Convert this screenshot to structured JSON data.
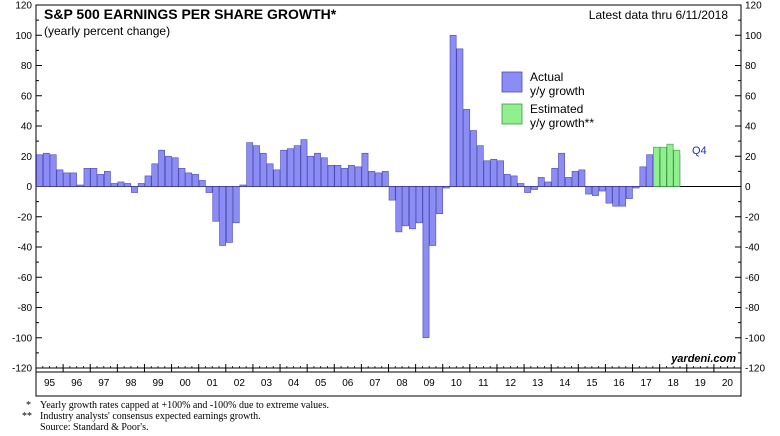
{
  "chart_data": {
    "type": "bar",
    "title": "S&P 500 EARNINGS PER SHARE GROWTH*",
    "subtitle": "(yearly percent change)",
    "latest_note": "Latest data thru 6/11/2018",
    "ylim": [
      -120,
      120
    ],
    "yticks": [
      -120,
      -100,
      -80,
      -60,
      -40,
      -20,
      0,
      20,
      40,
      60,
      80,
      100,
      120
    ],
    "year_labels": [
      "95",
      "96",
      "97",
      "98",
      "99",
      "00",
      "01",
      "02",
      "03",
      "04",
      "05",
      "06",
      "07",
      "08",
      "09",
      "10",
      "11",
      "12",
      "13",
      "14",
      "15",
      "16",
      "17",
      "18",
      "19",
      "20"
    ],
    "x_start_year": 1995,
    "x_end_year": 2021,
    "series": [
      {
        "name": "Actual y/y growth",
        "color": "#8c8cf5",
        "start_year": 1995,
        "values": [
          21,
          22,
          21,
          11,
          9,
          9,
          1,
          12,
          12,
          8,
          10,
          2,
          3,
          2,
          -4,
          2,
          7,
          15,
          24,
          20,
          19,
          12,
          9,
          8,
          4,
          -4,
          -23,
          -39,
          -37,
          -24,
          1,
          29,
          27,
          22,
          15,
          11,
          24,
          25,
          27,
          31,
          20,
          22,
          19,
          14,
          14,
          12,
          14,
          13,
          22,
          10,
          9,
          10,
          -9,
          -30,
          -26,
          -28,
          -24,
          -100,
          -39,
          -18,
          -1,
          100,
          91,
          51,
          37,
          27,
          17,
          18,
          17,
          8,
          7,
          2,
          -4,
          -2,
          6,
          3,
          12,
          22,
          6,
          10,
          11,
          -5,
          -6,
          -3,
          -11,
          -13,
          -13,
          -8,
          -1,
          13,
          21,
          20,
          18,
          9,
          21
        ]
      },
      {
        "name": "Estimated y/y growth**",
        "color": "#90f090",
        "start_year": 2017.75,
        "values": [
          26,
          26,
          28,
          24
        ]
      }
    ],
    "annotations": [
      "Q4"
    ],
    "legend": [
      {
        "line1": "Actual",
        "line2": "y/y growth"
      },
      {
        "line1": "Estimated",
        "line2": "y/y growth**"
      }
    ],
    "legend_position": "top-center",
    "watermark": "yardeni.com",
    "footnotes": [
      {
        "mark": "*",
        "text": "Yearly growth rates capped at +100% and -100% due to extreme values."
      },
      {
        "mark": "**",
        "text": "Industry analysts' consensus expected earnings growth."
      },
      {
        "mark": "",
        "text": "Source: Standard & Poor's."
      }
    ]
  }
}
